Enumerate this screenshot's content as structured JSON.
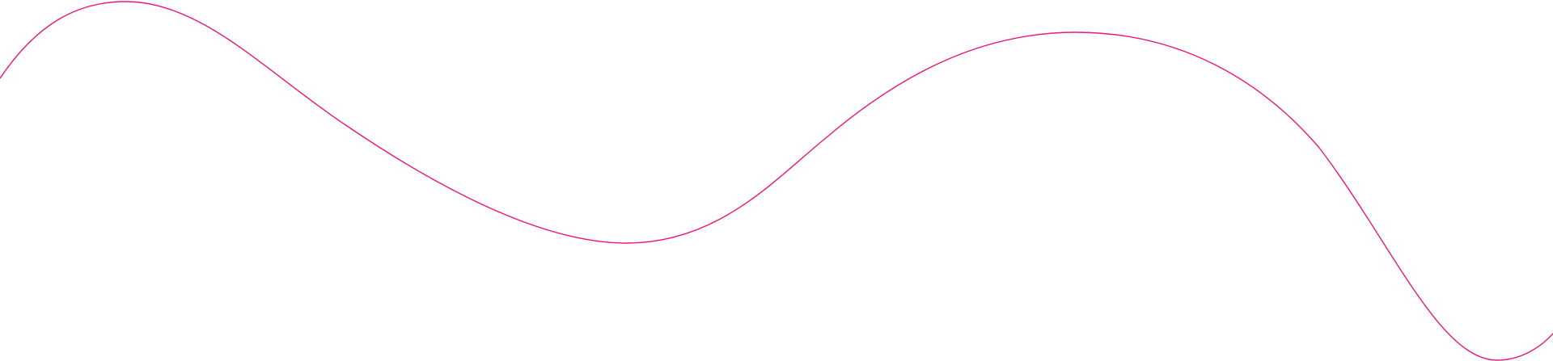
{
  "decoration": {
    "shape": "wavy-line",
    "stroke_color": "#e8177a",
    "background_color": "#ffffff"
  }
}
